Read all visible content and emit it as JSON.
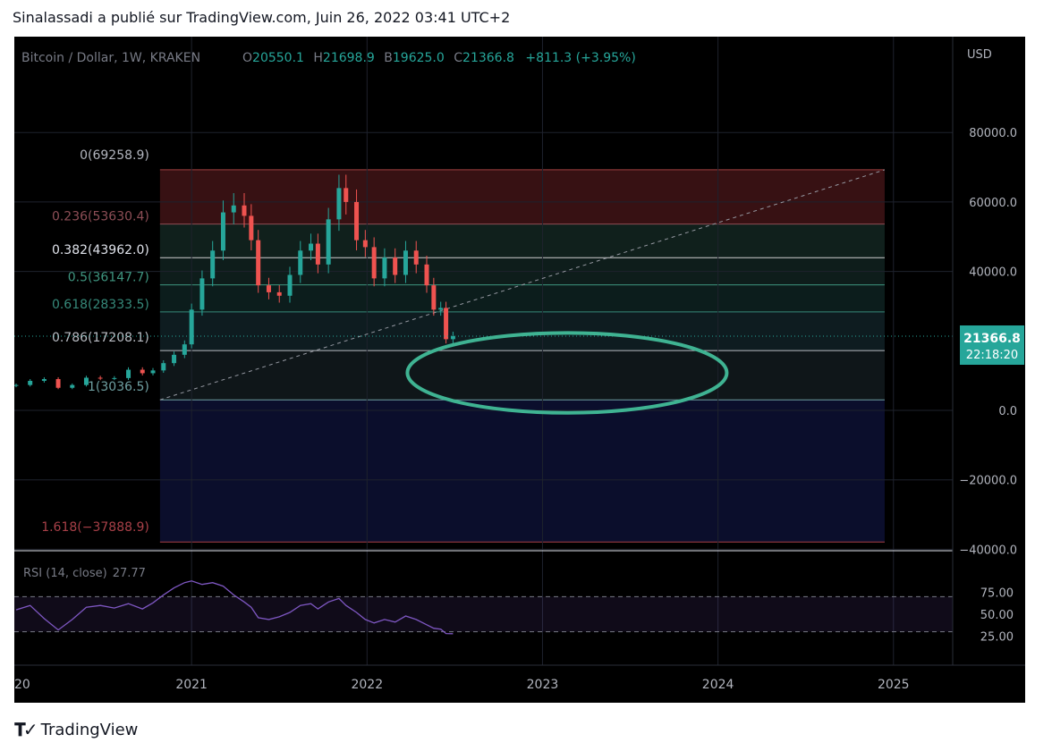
{
  "header": {
    "published": "Sinalassadi a publié sur TradingView.com, Juin 26, 2022 03:41 UTC+2"
  },
  "footer": {
    "brand": "TradingView",
    "logo_icon": "tradingview-logo-icon"
  },
  "legend": {
    "symbol": "Bitcoin / Dollar, 1W, KRAKEN",
    "o_label": "O",
    "o": "20550.1",
    "h_label": "H",
    "h": "21698.9",
    "b_label": "B",
    "b": "19625.0",
    "c_label": "C",
    "c": "21366.8",
    "change": "+811.3 (+3.95%)"
  },
  "price_tag": {
    "price": "21366.8",
    "countdown": "22:18:20"
  },
  "colors": {
    "up": "#26a69a",
    "down": "#ef5350",
    "ellipse": "#3fb392",
    "rsi_line": "#7e57c2",
    "fib_zone_top": "#3a1214",
    "fib_zone_lower": "#0c0f2e"
  },
  "chart_data": [
    {
      "type": "candlestick",
      "title": "",
      "symbol": "Bitcoin / Dollar",
      "interval": "1W",
      "exchange": "KRAKEN",
      "currency_label": "USD",
      "y_ticks": [
        "80000.0",
        "60000.0",
        "40000.0",
        "0.0",
        "−20000.0",
        "−40000.0"
      ],
      "y_tick_values": [
        80000,
        60000,
        40000,
        0,
        -20000,
        -40000
      ],
      "ylim": [
        -40000,
        100000
      ],
      "x_ticks": [
        "20",
        "2021",
        "2022",
        "2023",
        "2024",
        "2025"
      ],
      "x_tick_values": [
        2020.0,
        2021.0,
        2022.0,
        2023.0,
        2024.0,
        2025.0
      ],
      "xlim": [
        2020.0,
        2025.2
      ],
      "last_price": 21366.8,
      "fib_retracement": {
        "x_range": [
          2020.82,
          2024.95
        ],
        "levels": [
          {
            "ratio": "0",
            "price": 69258.9,
            "label": "0(69258.9)"
          },
          {
            "ratio": "0.236",
            "price": 53630.4,
            "label": "0.236(53630.4)"
          },
          {
            "ratio": "0.382",
            "price": 43962.0,
            "label": "0.382(43962.0)"
          },
          {
            "ratio": "0.5",
            "price": 36147.7,
            "label": "0.5(36147.7)"
          },
          {
            "ratio": "0.618",
            "price": 28333.5,
            "label": "0.618(28333.5)"
          },
          {
            "ratio": "0.786",
            "price": 17208.1,
            "label": "0.786(17208.1)"
          },
          {
            "ratio": "1",
            "price": 3036.5,
            "label": "1(3036.5)"
          },
          {
            "ratio": "1.618",
            "price": -37888.9,
            "label": "1.618(−37888.9)"
          }
        ]
      },
      "trend_line": {
        "x": [
          2020.82,
          2024.95
        ],
        "y": [
          3036.5,
          69258.9
        ]
      },
      "ellipse_annotation": {
        "center_x": 2023.14,
        "center_y": 10800,
        "half_width_years": 0.91,
        "half_height": 11500
      },
      "series": [
        {
          "name": "",
          "close": [
            [
              2020.0,
              7300
            ],
            [
              2020.08,
              8500
            ],
            [
              2020.16,
              9000
            ],
            [
              2020.24,
              6500
            ],
            [
              2020.32,
              7300
            ],
            [
              2020.4,
              9400
            ],
            [
              2020.48,
              9250
            ],
            [
              2020.56,
              9300
            ],
            [
              2020.64,
              11700
            ],
            [
              2020.72,
              10700
            ],
            [
              2020.78,
              11500
            ],
            [
              2020.84,
              13600
            ],
            [
              2020.9,
              16000
            ],
            [
              2020.96,
              19000
            ],
            [
              2021.0,
              29000
            ],
            [
              2021.06,
              38000
            ],
            [
              2021.12,
              46000
            ],
            [
              2021.18,
              57000
            ],
            [
              2021.24,
              59000
            ],
            [
              2021.3,
              56000
            ],
            [
              2021.34,
              49000
            ],
            [
              2021.38,
              36000
            ],
            [
              2021.44,
              34000
            ],
            [
              2021.5,
              33000
            ],
            [
              2021.56,
              39000
            ],
            [
              2021.62,
              46000
            ],
            [
              2021.68,
              48000
            ],
            [
              2021.72,
              42000
            ],
            [
              2021.78,
              55000
            ],
            [
              2021.84,
              64000
            ],
            [
              2021.88,
              60000
            ],
            [
              2021.94,
              49000
            ],
            [
              2021.99,
              47000
            ],
            [
              2022.04,
              38000
            ],
            [
              2022.1,
              44000
            ],
            [
              2022.16,
              39000
            ],
            [
              2022.22,
              46000
            ],
            [
              2022.28,
              42000
            ],
            [
              2022.34,
              36000
            ],
            [
              2022.38,
              29000
            ],
            [
              2022.42,
              29500
            ],
            [
              2022.45,
              20500
            ],
            [
              2022.49,
              21366.8
            ]
          ]
        },
        {
          "name": "",
          "ohlc_last": {
            "open": 20550.1,
            "high": 21698.9,
            "low": 19625.0,
            "close": 21366.8
          }
        }
      ]
    },
    {
      "type": "line",
      "title": "",
      "indicator_label": "RSI (14, close)",
      "current_value": "27.77",
      "y_ticks": [
        "75.00",
        "50.00",
        "25.00"
      ],
      "y_tick_values": [
        75,
        50,
        25
      ],
      "ylim": [
        20,
        82
      ],
      "bands": [
        30,
        70
      ],
      "x": [
        2020.0,
        2020.08,
        2020.16,
        2020.24,
        2020.32,
        2020.4,
        2020.48,
        2020.56,
        2020.64,
        2020.72,
        2020.78,
        2020.84,
        2020.9,
        2020.96,
        2021.0,
        2021.06,
        2021.12,
        2021.18,
        2021.24,
        2021.3,
        2021.34,
        2021.38,
        2021.44,
        2021.5,
        2021.56,
        2021.62,
        2021.68,
        2021.72,
        2021.78,
        2021.84,
        2021.88,
        2021.94,
        2021.99,
        2022.04,
        2022.1,
        2022.16,
        2022.22,
        2022.28,
        2022.34,
        2022.38,
        2022.42,
        2022.45,
        2022.49
      ],
      "series": [
        {
          "name": "",
          "values": [
            55,
            60,
            45,
            32,
            44,
            58,
            60,
            57,
            62,
            56,
            63,
            72,
            80,
            86,
            88,
            84,
            86,
            82,
            72,
            64,
            58,
            46,
            44,
            47,
            52,
            60,
            62,
            56,
            64,
            68,
            60,
            52,
            44,
            40,
            44,
            41,
            48,
            44,
            38,
            34,
            33,
            28,
            27.77
          ]
        }
      ]
    }
  ]
}
